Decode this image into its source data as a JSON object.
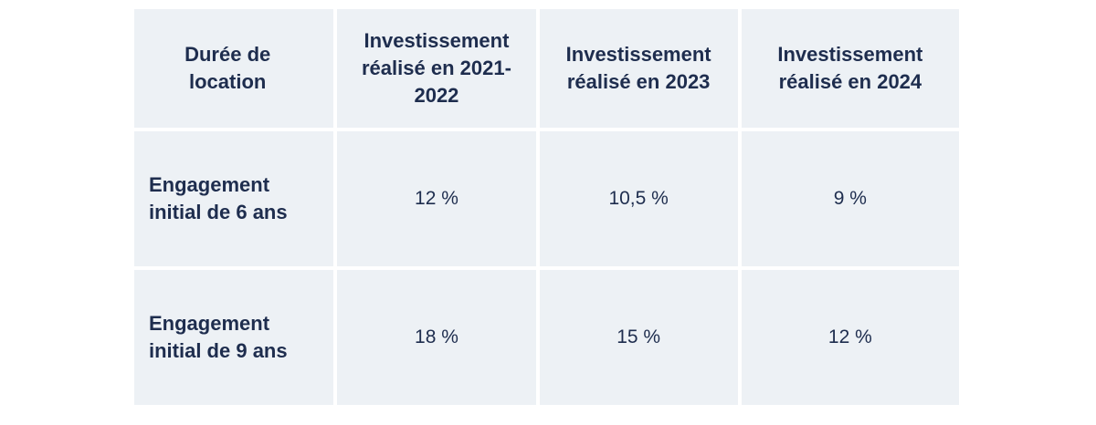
{
  "table": {
    "headers": [
      "Durée de location",
      "Investissement réalisé en 2021-2022",
      "Investissement réalisé en 2023",
      "Investissement réalisé en 2024"
    ],
    "rows": [
      {
        "label": "Engagement initial de 6 ans",
        "values": [
          "12 %",
          "10,5 %",
          "9 %"
        ]
      },
      {
        "label": "Engagement initial de 9 ans",
        "values": [
          "18 %",
          "15 %",
          "12 %"
        ]
      }
    ]
  }
}
